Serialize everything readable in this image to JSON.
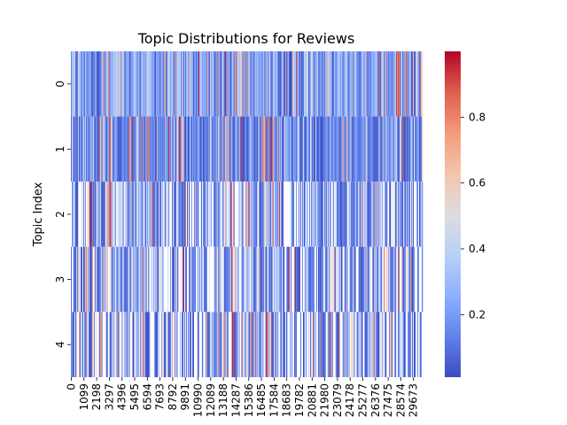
{
  "chart_data": {
    "type": "heatmap",
    "title": "Topic Distributions for Reviews",
    "xlabel": "",
    "ylabel": "Topic Index",
    "y_categories": [
      "0",
      "1",
      "2",
      "3",
      "4"
    ],
    "x_tick_labels": [
      "0",
      "1099",
      "2198",
      "3297",
      "4396",
      "5495",
      "6594",
      "7693",
      "8792",
      "9891",
      "10990",
      "12089",
      "13188",
      "14287",
      "15386",
      "16485",
      "17584",
      "18683",
      "19782",
      "20881",
      "21980",
      "23079",
      "24178",
      "25277",
      "26376",
      "27475",
      "28574",
      "29673"
    ],
    "x_range": [
      0,
      30500
    ],
    "value_range": [
      0.01,
      1.0
    ],
    "colormap": "coolwarm",
    "colorbar_ticks": [
      "0.2",
      "0.4",
      "0.6",
      "0.8"
    ],
    "colorbar_tick_values": [
      0.2,
      0.4,
      0.6,
      0.8
    ],
    "topic_mean_values": [
      0.32,
      0.2,
      0.2,
      0.14,
      0.14
    ],
    "grid": false,
    "legend": "colorbar-right"
  }
}
